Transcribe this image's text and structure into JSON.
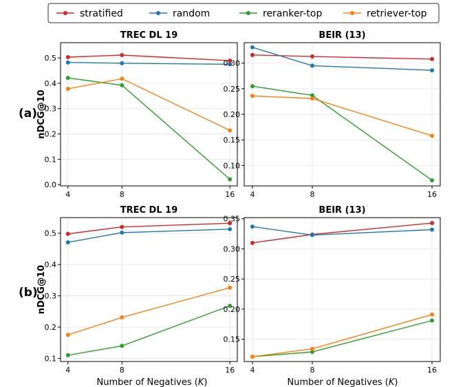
{
  "legend": [
    {
      "name": "stratified",
      "color": "#d62728"
    },
    {
      "name": "random",
      "color": "#1f77b4"
    },
    {
      "name": "reranker-top",
      "color": "#2ca02c"
    },
    {
      "name": "retriever-top",
      "color": "#ff7f0e"
    }
  ],
  "row_labels": [
    "(a)",
    "(b)"
  ],
  "ylabel": "nDCG@10",
  "xlabel": "Number of Negatives (",
  "xlabel_var": "K",
  "xlabel_close": ")",
  "chart_data": [
    {
      "type": "line",
      "row": "(a)",
      "title": "TREC DL 19",
      "x": [
        4,
        8,
        16
      ],
      "xticks": [
        "4",
        "8",
        "16"
      ],
      "ylim": [
        -0.005,
        0.56
      ],
      "yticks": [
        "0.0",
        "0.1",
        "0.2",
        "0.3",
        "0.4",
        "0.5"
      ],
      "ytick_values": [
        0.0,
        0.1,
        0.2,
        0.3,
        0.4,
        0.5
      ],
      "grid": true,
      "series": [
        {
          "name": "stratified",
          "color": "#d62728",
          "values": [
            0.503,
            0.511,
            0.489
          ]
        },
        {
          "name": "random",
          "color": "#1f77b4",
          "values": [
            0.482,
            0.479,
            0.475
          ]
        },
        {
          "name": "reranker-top",
          "color": "#2ca02c",
          "values": [
            0.421,
            0.392,
            0.021
          ]
        },
        {
          "name": "retriever-top",
          "color": "#ff7f0e",
          "values": [
            0.378,
            0.418,
            0.214
          ]
        }
      ]
    },
    {
      "type": "line",
      "row": "(a)",
      "title": "BEIR (13)",
      "x": [
        4,
        8,
        16
      ],
      "xticks": [
        "4",
        "8",
        "16"
      ],
      "ylim": [
        0.06,
        0.34
      ],
      "yticks": [
        "0.10",
        "0.15",
        "0.20",
        "0.25",
        "0.30"
      ],
      "ytick_values": [
        0.1,
        0.15,
        0.2,
        0.25,
        0.3
      ],
      "grid": true,
      "series": [
        {
          "name": "stratified",
          "color": "#d62728",
          "values": [
            0.316,
            0.313,
            0.308
          ]
        },
        {
          "name": "random",
          "color": "#1f77b4",
          "values": [
            0.331,
            0.295,
            0.286
          ]
        },
        {
          "name": "reranker-top",
          "color": "#2ca02c",
          "values": [
            0.255,
            0.237,
            0.071
          ]
        },
        {
          "name": "retriever-top",
          "color": "#ff7f0e",
          "values": [
            0.236,
            0.231,
            0.158
          ]
        }
      ]
    },
    {
      "type": "line",
      "row": "(b)",
      "title": "TREC DL 19",
      "x": [
        4,
        8,
        16
      ],
      "xticks": [
        "4",
        "8",
        "16"
      ],
      "ylim": [
        0.09,
        0.55
      ],
      "yticks": [
        "0.1",
        "0.2",
        "0.3",
        "0.4",
        "0.5"
      ],
      "ytick_values": [
        0.1,
        0.2,
        0.3,
        0.4,
        0.5
      ],
      "grid": true,
      "series": [
        {
          "name": "stratified",
          "color": "#d62728",
          "values": [
            0.498,
            0.52,
            0.532
          ]
        },
        {
          "name": "random",
          "color": "#1f77b4",
          "values": [
            0.471,
            0.502,
            0.513
          ]
        },
        {
          "name": "reranker-top",
          "color": "#2ca02c",
          "values": [
            0.11,
            0.14,
            0.268
          ]
        },
        {
          "name": "retriever-top",
          "color": "#ff7f0e",
          "values": [
            0.175,
            0.231,
            0.326
          ]
        }
      ]
    },
    {
      "type": "line",
      "row": "(b)",
      "title": "BEIR (13)",
      "x": [
        4,
        8,
        16
      ],
      "xticks": [
        "4",
        "8",
        "16"
      ],
      "ylim": [
        0.113,
        0.352
      ],
      "yticks": [
        "0.15",
        "0.20",
        "0.25",
        "0.30",
        "0.35"
      ],
      "ytick_values": [
        0.15,
        0.2,
        0.25,
        0.3,
        0.35
      ],
      "grid": true,
      "series": [
        {
          "name": "stratified",
          "color": "#d62728",
          "values": [
            0.31,
            0.324,
            0.343
          ]
        },
        {
          "name": "random",
          "color": "#1f77b4",
          "values": [
            0.337,
            0.323,
            0.332
          ]
        },
        {
          "name": "reranker-top",
          "color": "#2ca02c",
          "values": [
            0.121,
            0.129,
            0.181
          ]
        },
        {
          "name": "retriever-top",
          "color": "#ff7f0e",
          "values": [
            0.121,
            0.134,
            0.191
          ]
        }
      ]
    }
  ]
}
